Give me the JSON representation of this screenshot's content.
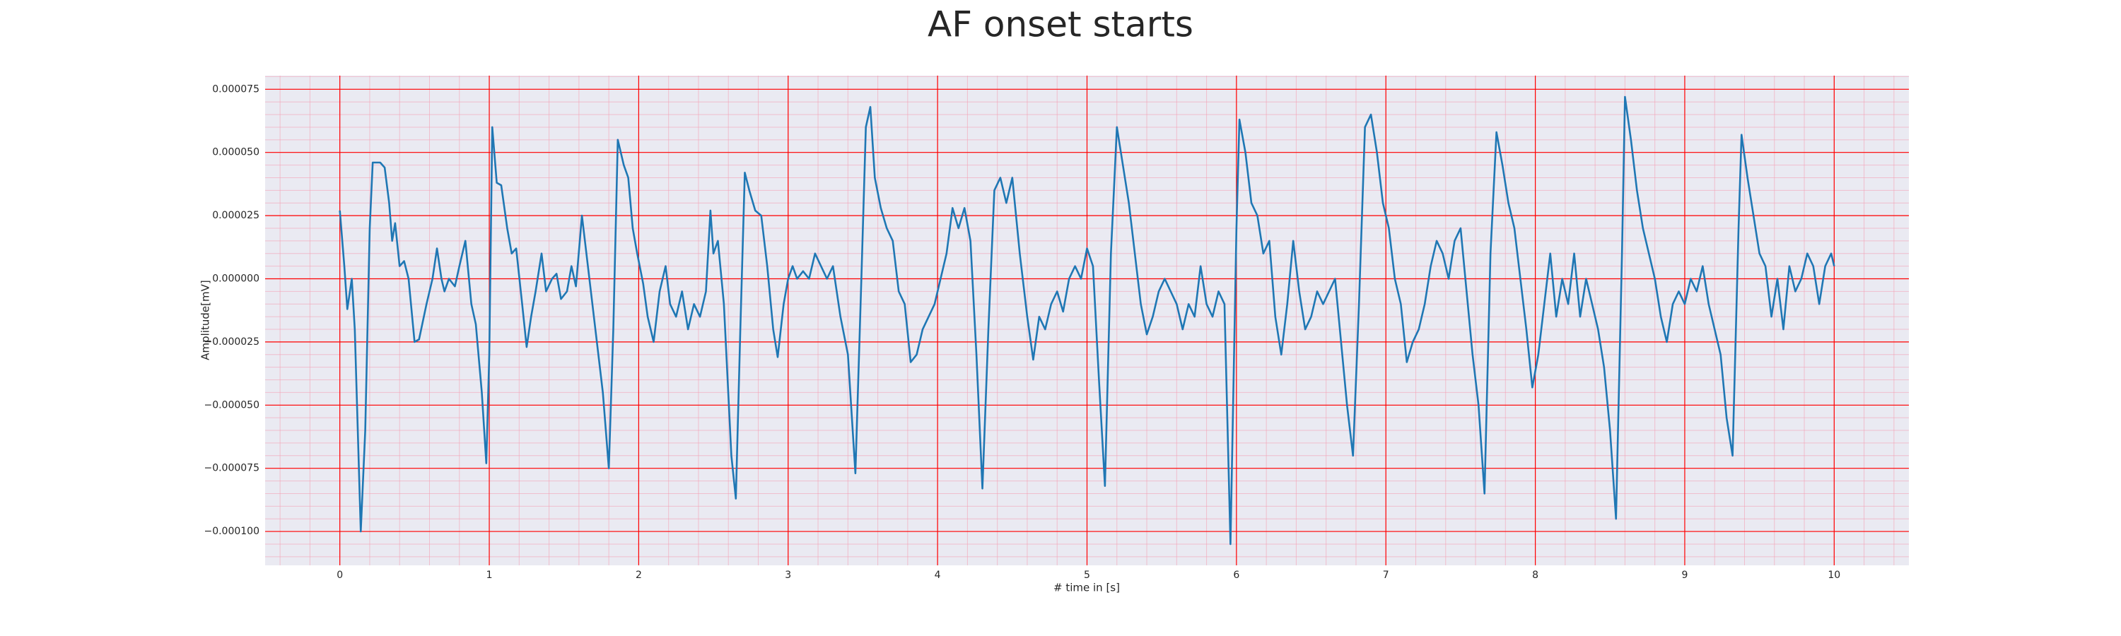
{
  "chart_data": {
    "type": "line",
    "title": "AF onset starts",
    "xlabel": "# time in [s]",
    "ylabel": "Amplitude[mV]",
    "xlim": [
      -0.5,
      10.5
    ],
    "xticks": [
      0,
      1,
      2,
      3,
      4,
      5,
      6,
      7,
      8,
      9,
      10
    ],
    "ylim": [
      -0.0001134,
      8.04e-05
    ],
    "yticks": [
      {
        "value": -0.0001,
        "label": "−0.000100"
      },
      {
        "value": -7.5e-05,
        "label": "−0.000075"
      },
      {
        "value": -5e-05,
        "label": "−0.000050"
      },
      {
        "value": -2.5e-05,
        "label": "−0.000025"
      },
      {
        "value": 0,
        "label": "0.000000"
      },
      {
        "value": 2.5e-05,
        "label": "0.000025"
      },
      {
        "value": 5e-05,
        "label": "0.000050"
      },
      {
        "value": 7.5e-05,
        "label": "0.000075"
      }
    ],
    "grid": true,
    "grid_color": "#ff0000",
    "minor_grid_color": "#f4a0b4",
    "x_minor_step": 0.2,
    "y_minor_step": 5e-06,
    "background": "#eaeaf2",
    "series": [
      {
        "color": "#1f77b4",
        "x": [
          0,
          0.03,
          0.05,
          0.08,
          0.1,
          0.14,
          0.17,
          0.2,
          0.22,
          0.27,
          0.3,
          0.33,
          0.35,
          0.37,
          0.4,
          0.43,
          0.46,
          0.5,
          0.53,
          0.58,
          0.62,
          0.65,
          0.68,
          0.7,
          0.73,
          0.77,
          0.8,
          0.84,
          0.88,
          0.91,
          0.95,
          0.98,
          1.0,
          1.02,
          1.05,
          1.08,
          1.12,
          1.15,
          1.18,
          1.22,
          1.25,
          1.28,
          1.31,
          1.35,
          1.38,
          1.42,
          1.45,
          1.48,
          1.52,
          1.55,
          1.58,
          1.62,
          1.65,
          1.68,
          1.72,
          1.76,
          1.8,
          1.83,
          1.86,
          1.9,
          1.93,
          1.96,
          1.99,
          2.03,
          2.06,
          2.1,
          2.14,
          2.18,
          2.21,
          2.25,
          2.29,
          2.33,
          2.37,
          2.41,
          2.45,
          2.48,
          2.5,
          2.53,
          2.57,
          2.62,
          2.65,
          2.68,
          2.71,
          2.74,
          2.78,
          2.82,
          2.86,
          2.9,
          2.93,
          2.97,
          3.0,
          3.03,
          3.06,
          3.1,
          3.14,
          3.18,
          3.22,
          3.26,
          3.3,
          3.35,
          3.4,
          3.45,
          3.49,
          3.52,
          3.55,
          3.58,
          3.62,
          3.66,
          3.7,
          3.74,
          3.78,
          3.82,
          3.86,
          3.9,
          3.94,
          3.98,
          4.02,
          4.06,
          4.1,
          4.14,
          4.18,
          4.22,
          4.26,
          4.3,
          4.34,
          4.38,
          4.42,
          4.46,
          4.5,
          4.55,
          4.6,
          4.64,
          4.68,
          4.72,
          4.76,
          4.8,
          4.84,
          4.88,
          4.92,
          4.96,
          5.0,
          5.04,
          5.08,
          5.12,
          5.16,
          5.2,
          5.24,
          5.28,
          5.32,
          5.36,
          5.4,
          5.44,
          5.48,
          5.52,
          5.56,
          5.6,
          5.64,
          5.68,
          5.72,
          5.76,
          5.8,
          5.84,
          5.88,
          5.92,
          5.96,
          6.0,
          6.02,
          6.06,
          6.1,
          6.14,
          6.18,
          6.22,
          6.26,
          6.3,
          6.34,
          6.38,
          6.42,
          6.46,
          6.5,
          6.54,
          6.58,
          6.62,
          6.66,
          6.7,
          6.74,
          6.78,
          6.82,
          6.86,
          6.9,
          6.94,
          6.98,
          7.02,
          7.06,
          7.1,
          7.14,
          7.18,
          7.22,
          7.26,
          7.3,
          7.34,
          7.38,
          7.42,
          7.46,
          7.5,
          7.54,
          7.58,
          7.62,
          7.66,
          7.7,
          7.74,
          7.78,
          7.82,
          7.86,
          7.9,
          7.94,
          7.98,
          8.02,
          8.06,
          8.1,
          8.14,
          8.18,
          8.22,
          8.26,
          8.3,
          8.34,
          8.38,
          8.42,
          8.46,
          8.5,
          8.54,
          8.58,
          8.6,
          8.64,
          8.68,
          8.72,
          8.76,
          8.8,
          8.84,
          8.88,
          8.92,
          8.96,
          9.0,
          9.04,
          9.08,
          9.12,
          9.16,
          9.2,
          9.24,
          9.28,
          9.32,
          9.36,
          9.38,
          9.42,
          9.46,
          9.5,
          9.54,
          9.58,
          9.62,
          9.66,
          9.7,
          9.74,
          9.78,
          9.82,
          9.86,
          9.9,
          9.94,
          9.98,
          10.0
        ],
        "values": [
          2.7e-05,
          5e-06,
          -1.2e-05,
          0,
          -2e-05,
          -0.0001,
          -6e-05,
          2e-05,
          4.6e-05,
          4.6e-05,
          4.4e-05,
          3e-05,
          1.5e-05,
          2.2e-05,
          5e-06,
          7e-06,
          0,
          -2.5e-05,
          -2.4e-05,
          -1e-05,
          0,
          1.2e-05,
          0,
          -5e-06,
          0,
          -3e-06,
          5e-06,
          1.5e-05,
          -1e-05,
          -1.8e-05,
          -4.5e-05,
          -7.3e-05,
          -3e-05,
          6e-05,
          3.8e-05,
          3.7e-05,
          2e-05,
          1e-05,
          1.2e-05,
          -1e-05,
          -2.7e-05,
          -1.5e-05,
          -5e-06,
          1e-05,
          -5e-06,
          0,
          2e-06,
          -8e-06,
          -5e-06,
          5e-06,
          -3e-06,
          2.5e-05,
          1e-05,
          -5e-06,
          -2.5e-05,
          -4.5e-05,
          -7.5e-05,
          -2e-05,
          5.5e-05,
          4.5e-05,
          4e-05,
          2e-05,
          1e-05,
          -2e-06,
          -1.5e-05,
          -2.5e-05,
          -5e-06,
          5e-06,
          -1e-05,
          -1.5e-05,
          -5e-06,
          -2e-05,
          -1e-05,
          -1.5e-05,
          -5e-06,
          2.7e-05,
          1e-05,
          1.5e-05,
          -1e-05,
          -7e-05,
          -8.7e-05,
          -2e-05,
          4.2e-05,
          3.5e-05,
          2.7e-05,
          2.5e-05,
          5e-06,
          -2e-05,
          -3.1e-05,
          -1e-05,
          0,
          5e-06,
          0,
          3e-06,
          0,
          1e-05,
          5e-06,
          0,
          5e-06,
          -1.5e-05,
          -3e-05,
          -7.7e-05,
          0,
          6e-05,
          6.8e-05,
          4e-05,
          2.8e-05,
          2e-05,
          1.5e-05,
          -5e-06,
          -1e-05,
          -3.3e-05,
          -3e-05,
          -2e-05,
          -1.5e-05,
          -1e-05,
          0,
          1e-05,
          2.8e-05,
          2e-05,
          2.8e-05,
          1.5e-05,
          -3e-05,
          -8.3e-05,
          -2e-05,
          3.5e-05,
          4e-05,
          3e-05,
          4e-05,
          1e-05,
          -1.5e-05,
          -3.2e-05,
          -1.5e-05,
          -2e-05,
          -1e-05,
          -5e-06,
          -1.3e-05,
          0,
          5e-06,
          0,
          1.2e-05,
          5e-06,
          -4e-05,
          -8.2e-05,
          1e-05,
          6e-05,
          4.5e-05,
          3e-05,
          1e-05,
          -1e-05,
          -2.2e-05,
          -1.5e-05,
          -5e-06,
          0,
          -5e-06,
          -1e-05,
          -2e-05,
          -1e-05,
          -1.5e-05,
          5e-06,
          -1e-05,
          -1.5e-05,
          -5e-06,
          -1e-05,
          -0.000105,
          2e-05,
          6.3e-05,
          5e-05,
          3e-05,
          2.5e-05,
          1e-05,
          1.5e-05,
          -1.5e-05,
          -3e-05,
          -1e-05,
          1.5e-05,
          -5e-06,
          -2e-05,
          -1.5e-05,
          -5e-06,
          -1e-05,
          -5e-06,
          0,
          -2.5e-05,
          -5e-05,
          -7e-05,
          -1e-05,
          6e-05,
          6.5e-05,
          5e-05,
          3e-05,
          2e-05,
          0,
          -1e-05,
          -3.3e-05,
          -2.5e-05,
          -2e-05,
          -1e-05,
          5e-06,
          1.5e-05,
          1e-05,
          0,
          1.5e-05,
          2e-05,
          -5e-06,
          -3e-05,
          -5e-05,
          -8.5e-05,
          1e-05,
          5.8e-05,
          4.5e-05,
          3e-05,
          2e-05,
          0,
          -2e-05,
          -4.3e-05,
          -3e-05,
          -1e-05,
          1e-05,
          -1.5e-05,
          0,
          -1e-05,
          1e-05,
          -1.5e-05,
          0,
          -1e-05,
          -2e-05,
          -3.5e-05,
          -6e-05,
          -9.5e-05,
          1e-05,
          7.2e-05,
          5.5e-05,
          3.5e-05,
          2e-05,
          1e-05,
          0,
          -1.5e-05,
          -2.5e-05,
          -1e-05,
          -5e-06,
          -1e-05,
          0,
          -5e-06,
          5e-06,
          -1e-05,
          -2e-05,
          -3e-05,
          -5.5e-05,
          -7e-05,
          2e-05,
          5.7e-05,
          4e-05,
          2.5e-05,
          1e-05,
          5e-06,
          -1.5e-05,
          0,
          -2e-05,
          5e-06,
          -5e-06,
          0,
          1e-05,
          5e-06,
          -1e-05,
          5e-06,
          1e-05,
          5e-06
        ]
      }
    ]
  }
}
